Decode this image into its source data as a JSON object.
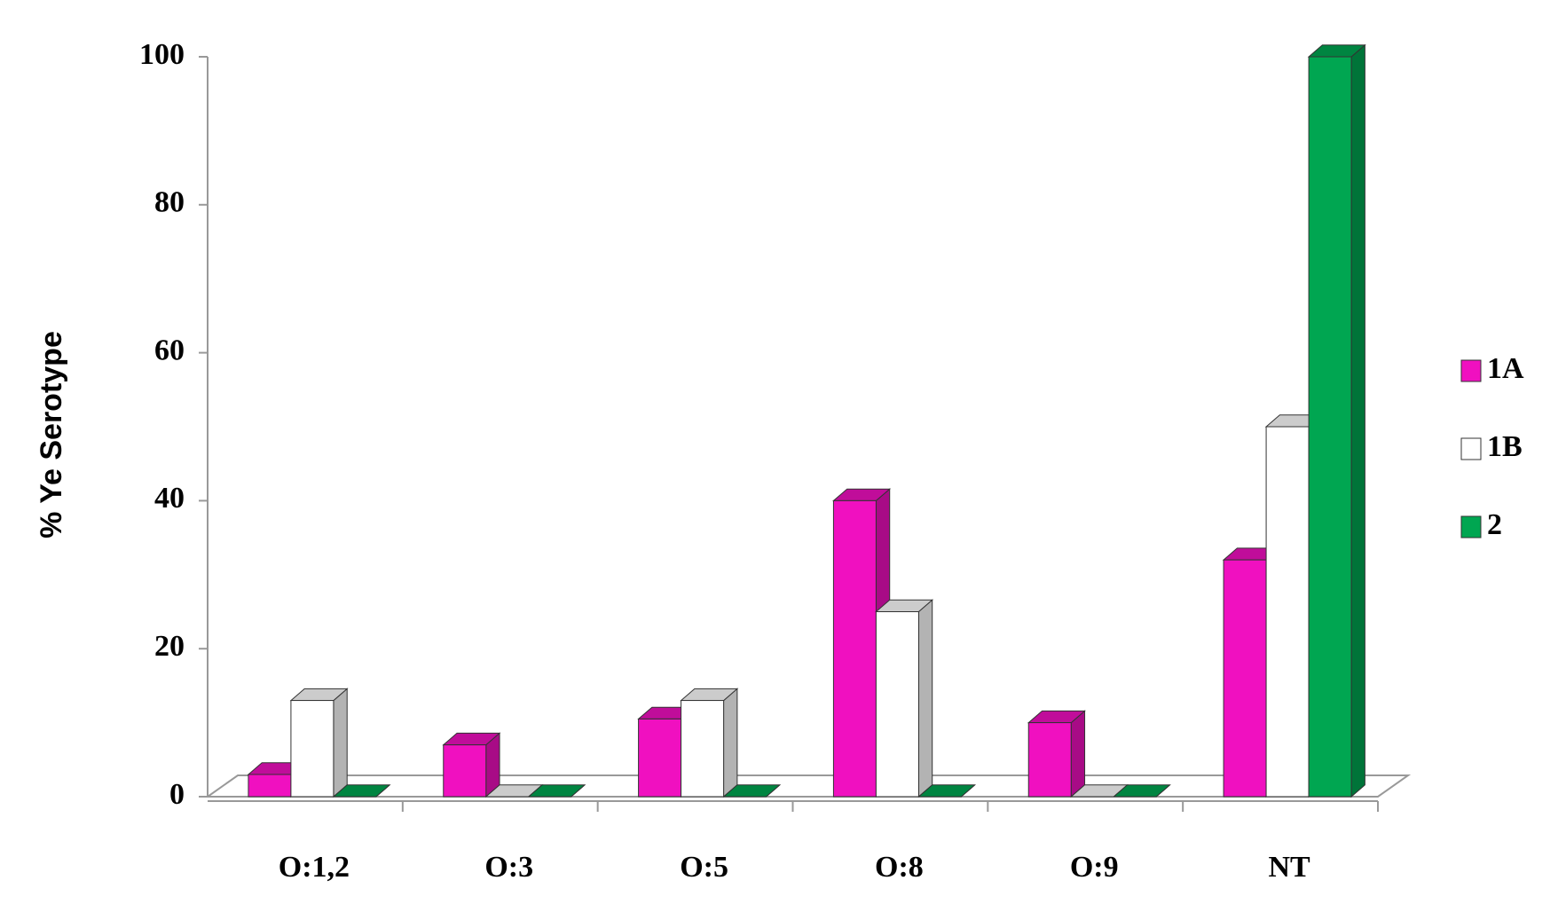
{
  "chart_data": {
    "type": "bar3d",
    "y_label": "% Ye Serotype",
    "categories": [
      "O:1,2",
      "O:3",
      "O:5",
      "O:8",
      "O:9",
      "NT"
    ],
    "series": [
      {
        "name": "1A",
        "color": "#f010c0",
        "values": [
          3,
          7,
          10.5,
          40,
          10,
          32
        ]
      },
      {
        "name": "1B",
        "color": "#ffffff",
        "values": [
          13,
          0,
          13,
          25,
          0,
          50
        ]
      },
      {
        "name": "2",
        "color": "#00a651",
        "values": [
          0,
          0,
          0,
          0,
          0,
          100
        ]
      }
    ],
    "ylim": [
      0,
      100
    ],
    "yticks": [
      0,
      20,
      40,
      60,
      80,
      100
    ],
    "grid": false,
    "legend": "right"
  }
}
